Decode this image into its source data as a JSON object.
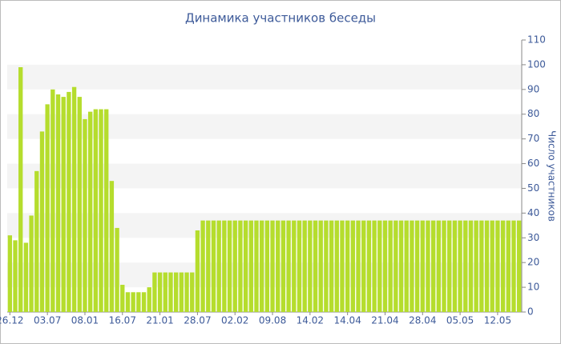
{
  "chart_data": {
    "type": "bar",
    "title": "Динамика участников беседы",
    "y_label": "Число участников",
    "categories": [
      "26.12",
      null,
      null,
      null,
      null,
      null,
      null,
      "03.07",
      null,
      null,
      null,
      null,
      null,
      null,
      "08.01",
      null,
      null,
      null,
      null,
      null,
      null,
      "16.07",
      null,
      null,
      null,
      null,
      null,
      null,
      "21.01",
      null,
      null,
      null,
      null,
      null,
      null,
      "28.07",
      null,
      null,
      null,
      null,
      null,
      null,
      "02.02",
      null,
      null,
      null,
      null,
      null,
      null,
      "09.08",
      null,
      null,
      null,
      null,
      null,
      null,
      "14.02",
      null,
      null,
      null,
      null,
      null,
      null,
      "14.04",
      null,
      null,
      null,
      null,
      null,
      null,
      "21.04",
      null,
      null,
      null,
      null,
      null,
      null,
      "28.04",
      null,
      null,
      null,
      null,
      null,
      null,
      "05.05",
      null,
      null,
      null,
      null,
      null,
      null,
      "12.05",
      null,
      null,
      null,
      null
    ],
    "values": [
      31,
      29,
      99,
      28,
      39,
      57,
      73,
      84,
      90,
      88,
      87,
      89,
      91,
      87,
      78,
      81,
      82,
      82,
      82,
      53,
      34,
      11,
      8,
      8,
      8,
      8,
      10,
      16,
      16,
      16,
      16,
      16,
      16,
      16,
      16,
      33,
      37,
      37,
      37,
      37,
      37,
      37,
      37,
      37,
      37,
      37,
      37,
      37,
      37,
      37,
      37,
      37,
      37,
      37,
      37,
      37,
      37,
      37,
      37,
      37,
      37,
      37,
      37,
      37,
      37,
      37,
      37,
      37,
      37,
      37,
      37,
      37,
      37,
      37,
      37,
      37,
      37,
      37,
      37,
      37,
      37,
      37,
      37,
      37,
      37,
      37,
      37,
      37,
      37,
      37,
      37,
      37,
      37,
      37,
      37,
      37
    ],
    "color": "#b5dd2d",
    "ylim": [
      0,
      110
    ],
    "yticks": [
      0,
      10,
      20,
      30,
      40,
      50,
      60,
      70,
      80,
      90,
      100,
      110
    ],
    "grid": true
  }
}
